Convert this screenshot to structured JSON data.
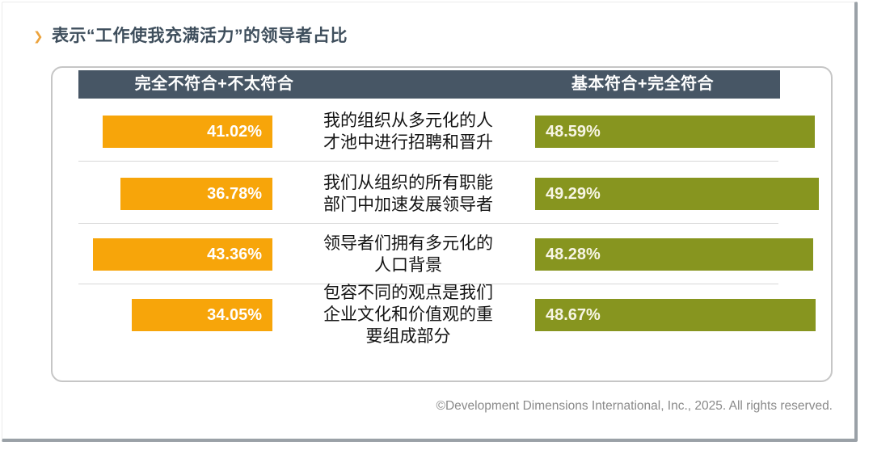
{
  "page": {
    "title": "表示“工作使我充满活力”的领导者占比",
    "chevron_icon": "❯",
    "footer": "©Development Dimensions International, Inc., 2025. All rights reserved."
  },
  "colors": {
    "orange_bar": "#F7A50A",
    "olive_bar": "#87951F",
    "header_bg": "#475665",
    "title_text": "#3E4E5C",
    "slide_shadow": "#9aa1a7"
  },
  "header": {
    "left_label": "完全不符合+不太符合",
    "right_label": "基本符合+完全符合"
  },
  "rows": [
    {
      "statement": "我的组织从多元化的人才池中进行招聘和晋升",
      "left_label": "41.02%",
      "left_value": 41.02,
      "right_label": "48.59%",
      "right_value": 48.59
    },
    {
      "statement": "我们从组织的所有职能部门中加速发展领导者",
      "left_label": "36.78%",
      "left_value": 36.78,
      "right_label": "49.29%",
      "right_value": 49.29
    },
    {
      "statement": "领导者们拥有多元化的人口背景",
      "left_label": "43.36%",
      "left_value": 43.36,
      "right_label": "48.28%",
      "right_value": 48.28
    },
    {
      "statement": "包容不同的观点是我们企业文化和价值观的重要组成部分",
      "left_label": "34.05%",
      "left_value": 34.05,
      "right_label": "48.67%",
      "right_value": 48.67
    }
  ],
  "chart_data": {
    "type": "bar",
    "title": "表示“工作使我充满活力”的领导者占比",
    "categories": [
      "我的组织从多元化的人才池中进行招聘和晋升",
      "我们从组织的所有职能部门中加速发展领导者",
      "领导者们拥有多元化的人口背景",
      "包容不同的观点是我们企业文化和价值观的重要组成部分"
    ],
    "series": [
      {
        "name": "完全不符合+不太符合",
        "values": [
          41.02,
          36.78,
          43.36,
          34.05
        ],
        "color": "#F7A50A",
        "unit": "%",
        "bar_labels": [
          "41.02%",
          "36.78%",
          "43.36%",
          "34.05%"
        ]
      },
      {
        "name": "基本符合+完全符合",
        "values": [
          48.59,
          49.29,
          48.28,
          48.67
        ],
        "color": "#87951F",
        "unit": "%",
        "bar_labels": [
          "48.59%",
          "49.29%",
          "48.28%",
          "48.67%"
        ]
      }
    ],
    "layout": "horizontal butterfly/tornado chart; left series grows leftward from center, right series grows rightward; category labels in center column; legend rendered as dark header band above bars",
    "legend_position": "top",
    "grid": false,
    "footnote": "©Development Dimensions International, Inc., 2025. All rights reserved."
  }
}
